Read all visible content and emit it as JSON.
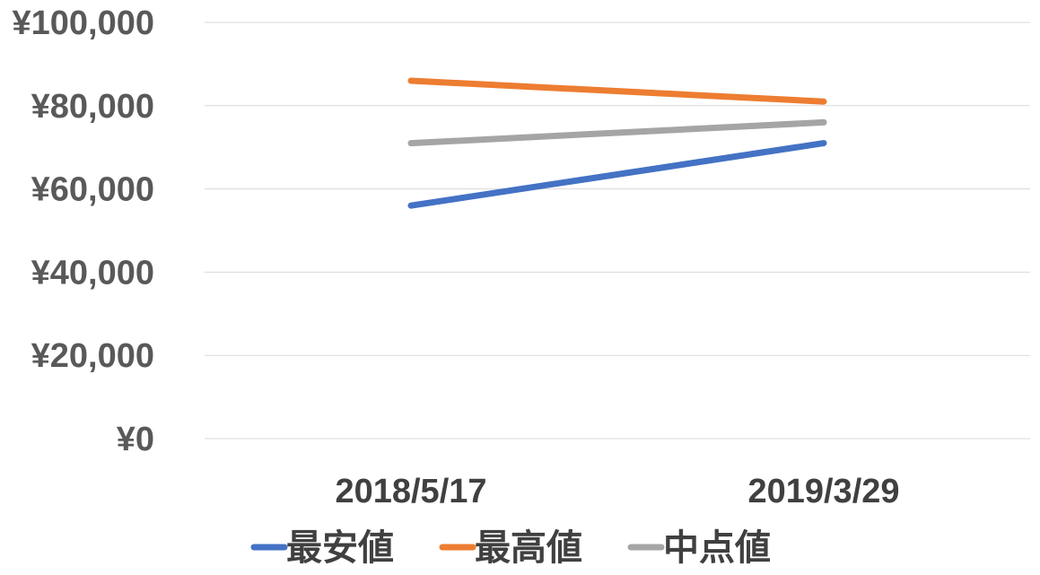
{
  "chart_data": {
    "type": "line",
    "title": "",
    "xlabel": "",
    "ylabel": "",
    "categories": [
      "2018/5/17",
      "2019/3/29"
    ],
    "series": [
      {
        "name": "最安値",
        "values": [
          56000,
          71000
        ],
        "color": "#4472C4"
      },
      {
        "name": "最高値",
        "values": [
          86000,
          81000
        ],
        "color": "#ED7D31"
      },
      {
        "name": "中点値",
        "values": [
          71000,
          76000
        ],
        "color": "#A5A5A5"
      }
    ],
    "ylim": [
      0,
      100000
    ],
    "yticks": [
      0,
      20000,
      40000,
      60000,
      80000,
      100000
    ],
    "ytick_labels": [
      "¥0",
      "¥20,000",
      "¥40,000",
      "¥60,000",
      "¥80,000",
      "¥100,000"
    ],
    "grid": true,
    "legend": "bottom"
  }
}
